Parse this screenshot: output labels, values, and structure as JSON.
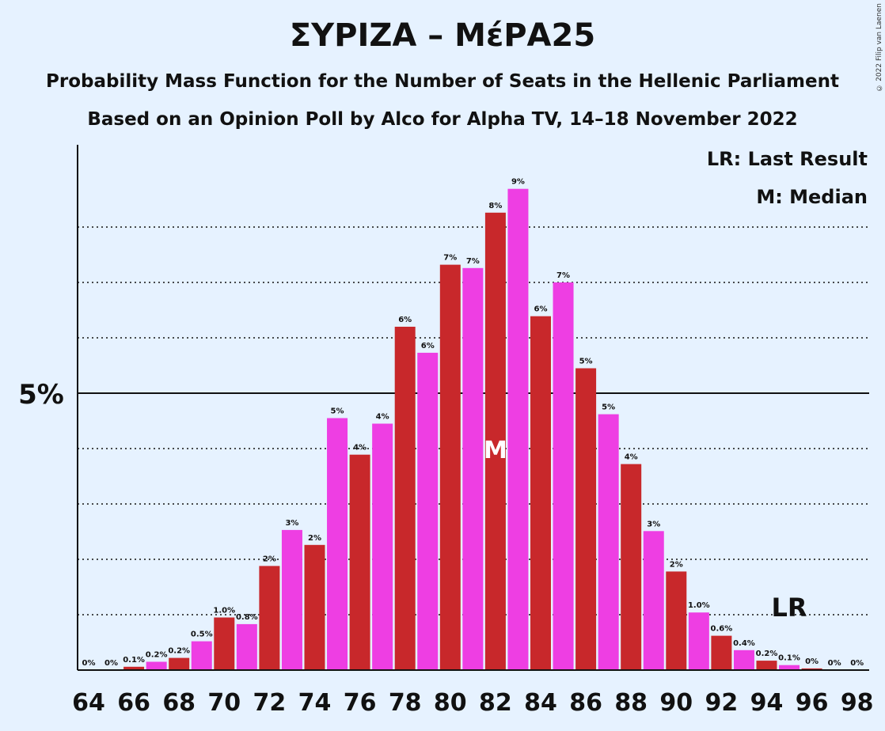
{
  "chart_data": {
    "type": "bar",
    "title": "ΣΥΡΙΖΑ – ΜέΡΑ25",
    "subtitle": "Probability Mass Function for the Number of Seats in the Hellenic Parliament",
    "subtitle2": "Based on an Opinion Poll by Alco for Alpha TV, 14–18 November 2022",
    "copyright": "© 2022 Filip van Laenen",
    "legend": [
      "LR: Last Result",
      "M: Median"
    ],
    "legend_position": "top-right",
    "x": [
      64,
      65,
      66,
      67,
      68,
      69,
      70,
      71,
      72,
      73,
      74,
      75,
      76,
      77,
      78,
      79,
      80,
      81,
      82,
      83,
      84,
      85,
      86,
      87,
      88,
      89,
      90,
      91,
      92,
      93,
      94,
      95,
      96,
      97,
      98
    ],
    "values": [
      0,
      0,
      0.06,
      0.15,
      0.22,
      0.52,
      0.95,
      0.83,
      1.88,
      2.53,
      2.26,
      4.55,
      3.89,
      4.45,
      6.2,
      5.73,
      7.32,
      7.26,
      8.26,
      8.69,
      6.39,
      7.0,
      5.45,
      4.62,
      3.72,
      2.51,
      1.78,
      1.04,
      0.62,
      0.36,
      0.17,
      0.09,
      0.03,
      0,
      0
    ],
    "labels": [
      "0%",
      "0%",
      "0.1%",
      "0.2%",
      "0.2%",
      "0.5%",
      "1.0%",
      "0.8%",
      "2%",
      "3%",
      "2%",
      "5%",
      "4%",
      "4%",
      "6%",
      "6%",
      "7%",
      "7%",
      "8%",
      "9%",
      "6%",
      "7%",
      "5%",
      "5%",
      "4%",
      "3%",
      "2%",
      "1.0%",
      "0.6%",
      "0.4%",
      "0.2%",
      "0.1%",
      "0%",
      "0%",
      "0%"
    ],
    "x_tick_labels": [
      "64",
      "66",
      "68",
      "70",
      "72",
      "74",
      "76",
      "78",
      "80",
      "82",
      "84",
      "86",
      "88",
      "90",
      "92",
      "94",
      "96",
      "98"
    ],
    "y_tick_label": "5%",
    "y_major": 5,
    "ylim": [
      0,
      9.5
    ],
    "gridlines": [
      1,
      2,
      3,
      4,
      6,
      7,
      8
    ],
    "median": 82,
    "median_label": "M",
    "last_result": 95,
    "last_result_label": "LR",
    "colors": {
      "dark": "#c8282b",
      "light": "#ee3ee3",
      "background": "#e6f2ff"
    }
  }
}
